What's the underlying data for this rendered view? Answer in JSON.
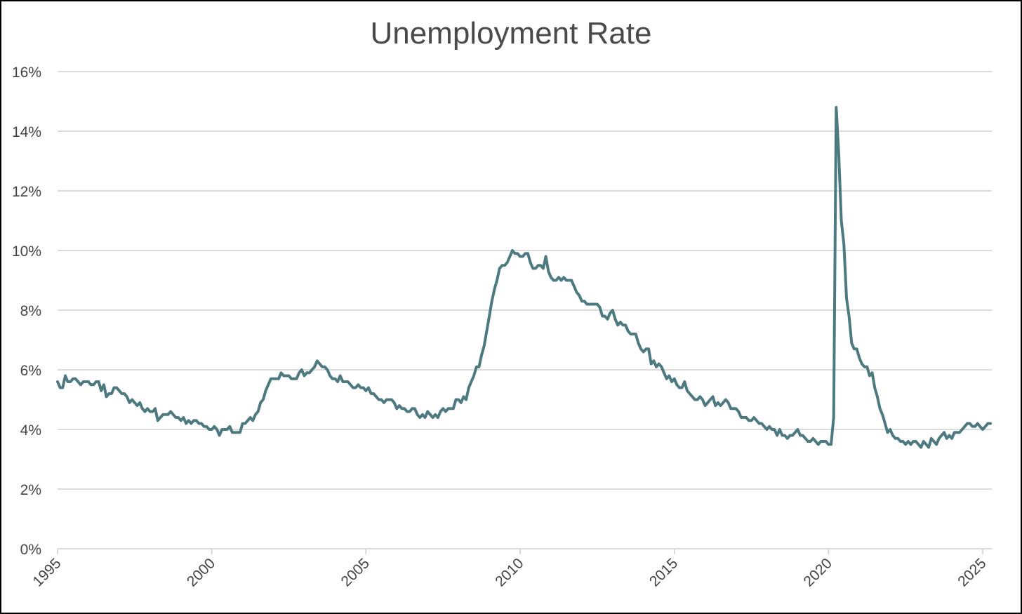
{
  "chart_data": {
    "type": "line",
    "title": "Unemployment Rate",
    "xlabel": "",
    "ylabel": "",
    "ylim": [
      0,
      16
    ],
    "xlim": [
      1995,
      2025.33
    ],
    "grid": true,
    "legend": null,
    "y_ticks": [
      "0%",
      "2%",
      "4%",
      "6%",
      "8%",
      "10%",
      "12%",
      "14%",
      "16%"
    ],
    "y_tick_values": [
      0,
      2,
      4,
      6,
      8,
      10,
      12,
      14,
      16
    ],
    "x_ticks": [
      "1995",
      "2000",
      "2005",
      "2010",
      "2015",
      "2020",
      "2025"
    ],
    "x_tick_values": [
      1995,
      2000,
      2005,
      2010,
      2015,
      2020,
      2025
    ],
    "series": [
      {
        "name": "Unemployment Rate",
        "color": "#4d7a80",
        "start": "1995-01",
        "frequency": "monthly",
        "values": [
          5.6,
          5.4,
          5.4,
          5.8,
          5.6,
          5.6,
          5.7,
          5.7,
          5.6,
          5.5,
          5.6,
          5.6,
          5.6,
          5.5,
          5.5,
          5.6,
          5.6,
          5.3,
          5.5,
          5.1,
          5.2,
          5.2,
          5.4,
          5.4,
          5.3,
          5.2,
          5.2,
          5.1,
          4.9,
          5.0,
          4.9,
          4.8,
          4.9,
          4.7,
          4.6,
          4.7,
          4.6,
          4.6,
          4.7,
          4.3,
          4.4,
          4.5,
          4.5,
          4.5,
          4.6,
          4.5,
          4.4,
          4.4,
          4.3,
          4.4,
          4.2,
          4.3,
          4.2,
          4.3,
          4.3,
          4.2,
          4.2,
          4.1,
          4.1,
          4.0,
          4.0,
          4.1,
          4.0,
          3.8,
          4.0,
          4.0,
          4.0,
          4.1,
          3.9,
          3.9,
          3.9,
          3.9,
          4.2,
          4.2,
          4.3,
          4.4,
          4.3,
          4.5,
          4.6,
          4.9,
          5.0,
          5.3,
          5.5,
          5.7,
          5.7,
          5.7,
          5.7,
          5.9,
          5.8,
          5.8,
          5.8,
          5.7,
          5.7,
          5.7,
          5.9,
          6.0,
          5.8,
          5.9,
          5.9,
          6.0,
          6.1,
          6.3,
          6.2,
          6.1,
          6.1,
          6.0,
          5.8,
          5.7,
          5.7,
          5.6,
          5.8,
          5.6,
          5.6,
          5.6,
          5.5,
          5.4,
          5.4,
          5.5,
          5.4,
          5.4,
          5.3,
          5.4,
          5.2,
          5.2,
          5.1,
          5.0,
          5.0,
          4.9,
          5.0,
          5.0,
          5.0,
          4.9,
          4.7,
          4.8,
          4.7,
          4.7,
          4.6,
          4.6,
          4.7,
          4.7,
          4.5,
          4.4,
          4.5,
          4.4,
          4.6,
          4.5,
          4.4,
          4.5,
          4.4,
          4.6,
          4.7,
          4.6,
          4.7,
          4.7,
          4.7,
          5.0,
          5.0,
          4.9,
          5.1,
          5.0,
          5.4,
          5.6,
          5.8,
          6.1,
          6.1,
          6.5,
          6.8,
          7.3,
          7.8,
          8.3,
          8.7,
          9.0,
          9.4,
          9.5,
          9.5,
          9.6,
          9.8,
          10.0,
          9.9,
          9.9,
          9.8,
          9.8,
          9.9,
          9.9,
          9.6,
          9.4,
          9.4,
          9.5,
          9.5,
          9.4,
          9.8,
          9.3,
          9.1,
          9.0,
          9.0,
          9.1,
          9.0,
          9.1,
          9.0,
          9.0,
          9.0,
          8.8,
          8.6,
          8.5,
          8.3,
          8.3,
          8.2,
          8.2,
          8.2,
          8.2,
          8.2,
          8.1,
          7.8,
          7.8,
          7.7,
          7.9,
          8.0,
          7.7,
          7.5,
          7.6,
          7.5,
          7.5,
          7.3,
          7.2,
          7.2,
          7.2,
          6.9,
          6.7,
          6.6,
          6.7,
          6.7,
          6.2,
          6.3,
          6.1,
          6.2,
          6.1,
          5.9,
          5.7,
          5.8,
          5.6,
          5.7,
          5.5,
          5.4,
          5.4,
          5.6,
          5.3,
          5.2,
          5.1,
          5.0,
          5.0,
          5.1,
          5.0,
          4.8,
          4.9,
          5.0,
          5.1,
          4.8,
          4.9,
          4.8,
          4.9,
          5.0,
          4.9,
          4.7,
          4.7,
          4.7,
          4.6,
          4.4,
          4.4,
          4.4,
          4.3,
          4.3,
          4.4,
          4.3,
          4.2,
          4.2,
          4.1,
          4.0,
          4.1,
          4.0,
          4.0,
          3.8,
          4.0,
          3.8,
          3.8,
          3.7,
          3.8,
          3.8,
          3.9,
          4.0,
          3.8,
          3.8,
          3.7,
          3.6,
          3.6,
          3.7,
          3.6,
          3.5,
          3.6,
          3.6,
          3.6,
          3.5,
          3.5,
          4.4,
          14.8,
          13.2,
          11.0,
          10.2,
          8.4,
          7.8,
          6.9,
          6.7,
          6.7,
          6.4,
          6.2,
          6.1,
          6.1,
          5.8,
          5.9,
          5.4,
          5.1,
          4.7,
          4.5,
          4.2,
          3.9,
          4.0,
          3.8,
          3.7,
          3.7,
          3.6,
          3.6,
          3.5,
          3.6,
          3.5,
          3.6,
          3.6,
          3.5,
          3.4,
          3.6,
          3.5,
          3.4,
          3.7,
          3.6,
          3.5,
          3.7,
          3.8,
          3.9,
          3.7,
          3.8,
          3.7,
          3.9,
          3.9,
          3.9,
          4.0,
          4.1,
          4.2,
          4.2,
          4.1,
          4.1,
          4.2,
          4.1,
          4.0,
          4.1,
          4.2,
          4.2
        ]
      }
    ]
  }
}
